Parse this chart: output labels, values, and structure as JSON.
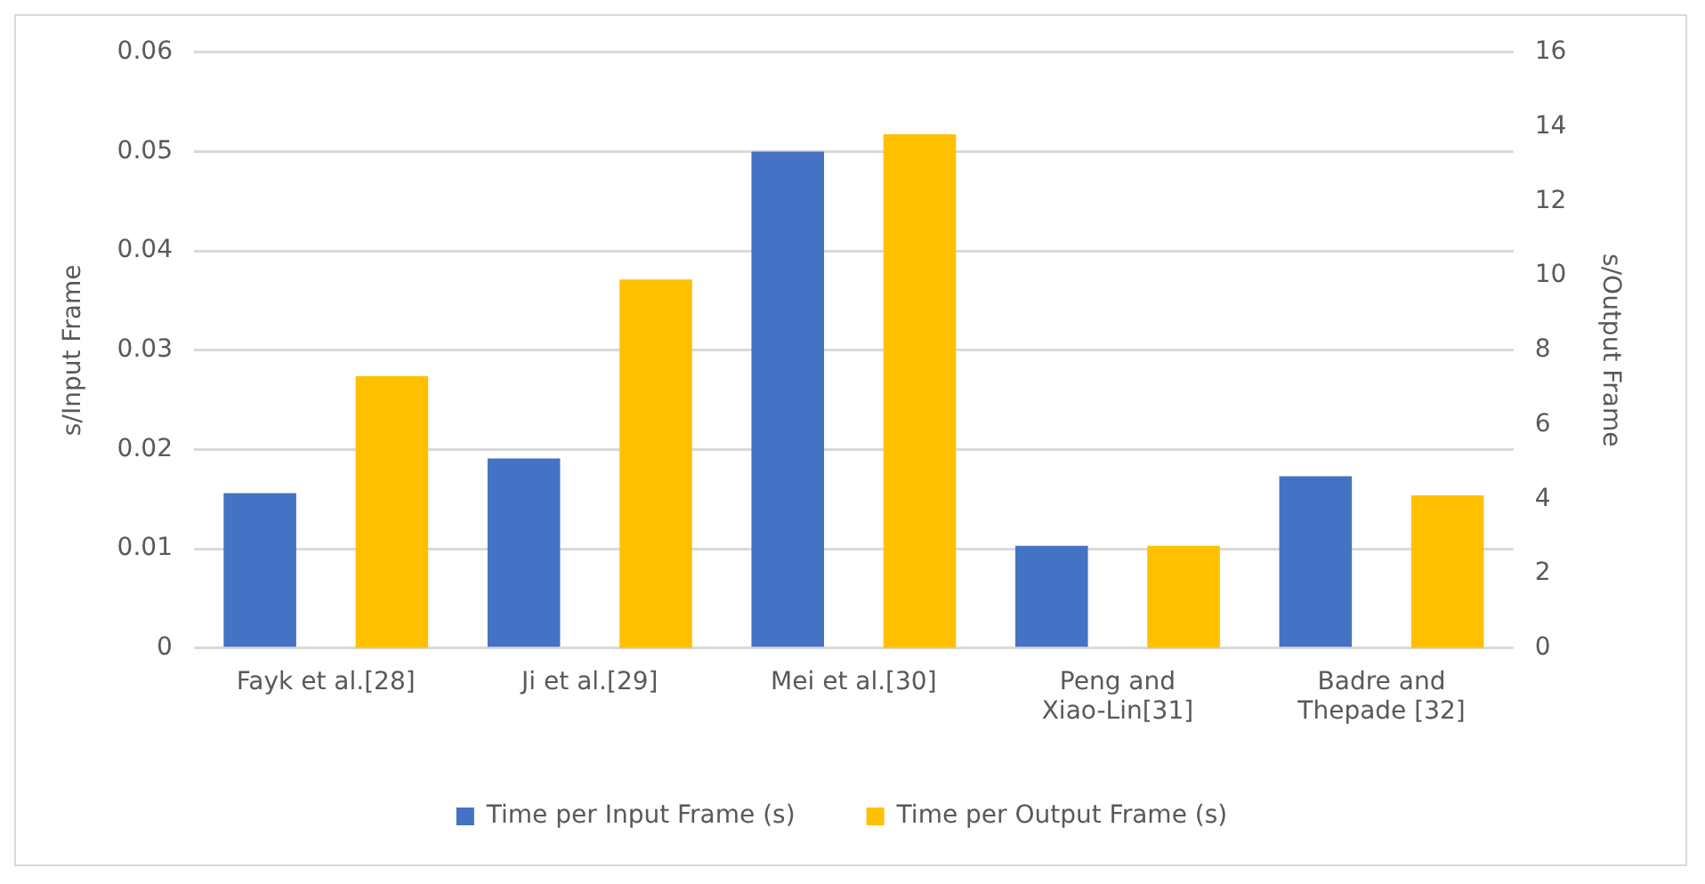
{
  "chart_data": {
    "type": "bar",
    "categories": [
      "Fayk et al.[28]",
      "Ji et al.[29]",
      "Mei et al.[30]",
      "Peng and Xiao-Lin[31]",
      "Badre and Thepade [32]"
    ],
    "series": [
      {
        "name": "Time per Input Frame (s)",
        "color": "#4472c4",
        "values": [
          0.0156,
          0.0191,
          0.05,
          0.0103,
          0.0173
        ]
      },
      {
        "name": "Time per Output Frame (s)",
        "color": "#ffc000",
        "axis": "y2",
        "values": [
          7.3,
          9.9,
          13.8,
          2.75,
          4.1
        ]
      }
    ],
    "ylabel": "s/Input Frame",
    "y2label": "s/Output Frame",
    "ylim": [
      0,
      0.06
    ],
    "yticks": [
      0,
      0.01,
      0.02,
      0.03,
      0.04,
      0.05,
      0.06
    ],
    "y2lim": [
      0,
      16
    ],
    "y2ticks": [
      0,
      2,
      4,
      6,
      8,
      10,
      12,
      14,
      16
    ],
    "grid": "y",
    "legend": "bottom"
  }
}
